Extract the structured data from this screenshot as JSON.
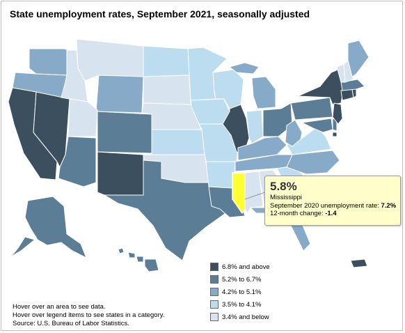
{
  "title": "State unemployment rates, September 2021, seasonally adjusted",
  "legend": {
    "items": [
      {
        "label": "6.8% and above",
        "color": "#3b4f5f"
      },
      {
        "label": "5.2% to 6.7%",
        "color": "#5b7d96"
      },
      {
        "label": "4.2% to 5.1%",
        "color": "#86aac8"
      },
      {
        "label": "3.5% to 4.1%",
        "color": "#bcdcf0"
      },
      {
        "label": "3.4% and below",
        "color": "#d7e3ee"
      }
    ]
  },
  "notes": {
    "line1": "Hover over an area to see data.",
    "line2": "Hover over legend items to see states in a category.",
    "line3": "Source: U.S. Bureau of Labor Statistics."
  },
  "tooltip": {
    "value": "5.8%",
    "state": "Mississippi",
    "prior_label": "September 2020 unemployment rate:",
    "prior_value": "7.2%",
    "change_label": "12-month change:",
    "change_value": "-1.4"
  },
  "highlight_color": "#ffff33"
}
